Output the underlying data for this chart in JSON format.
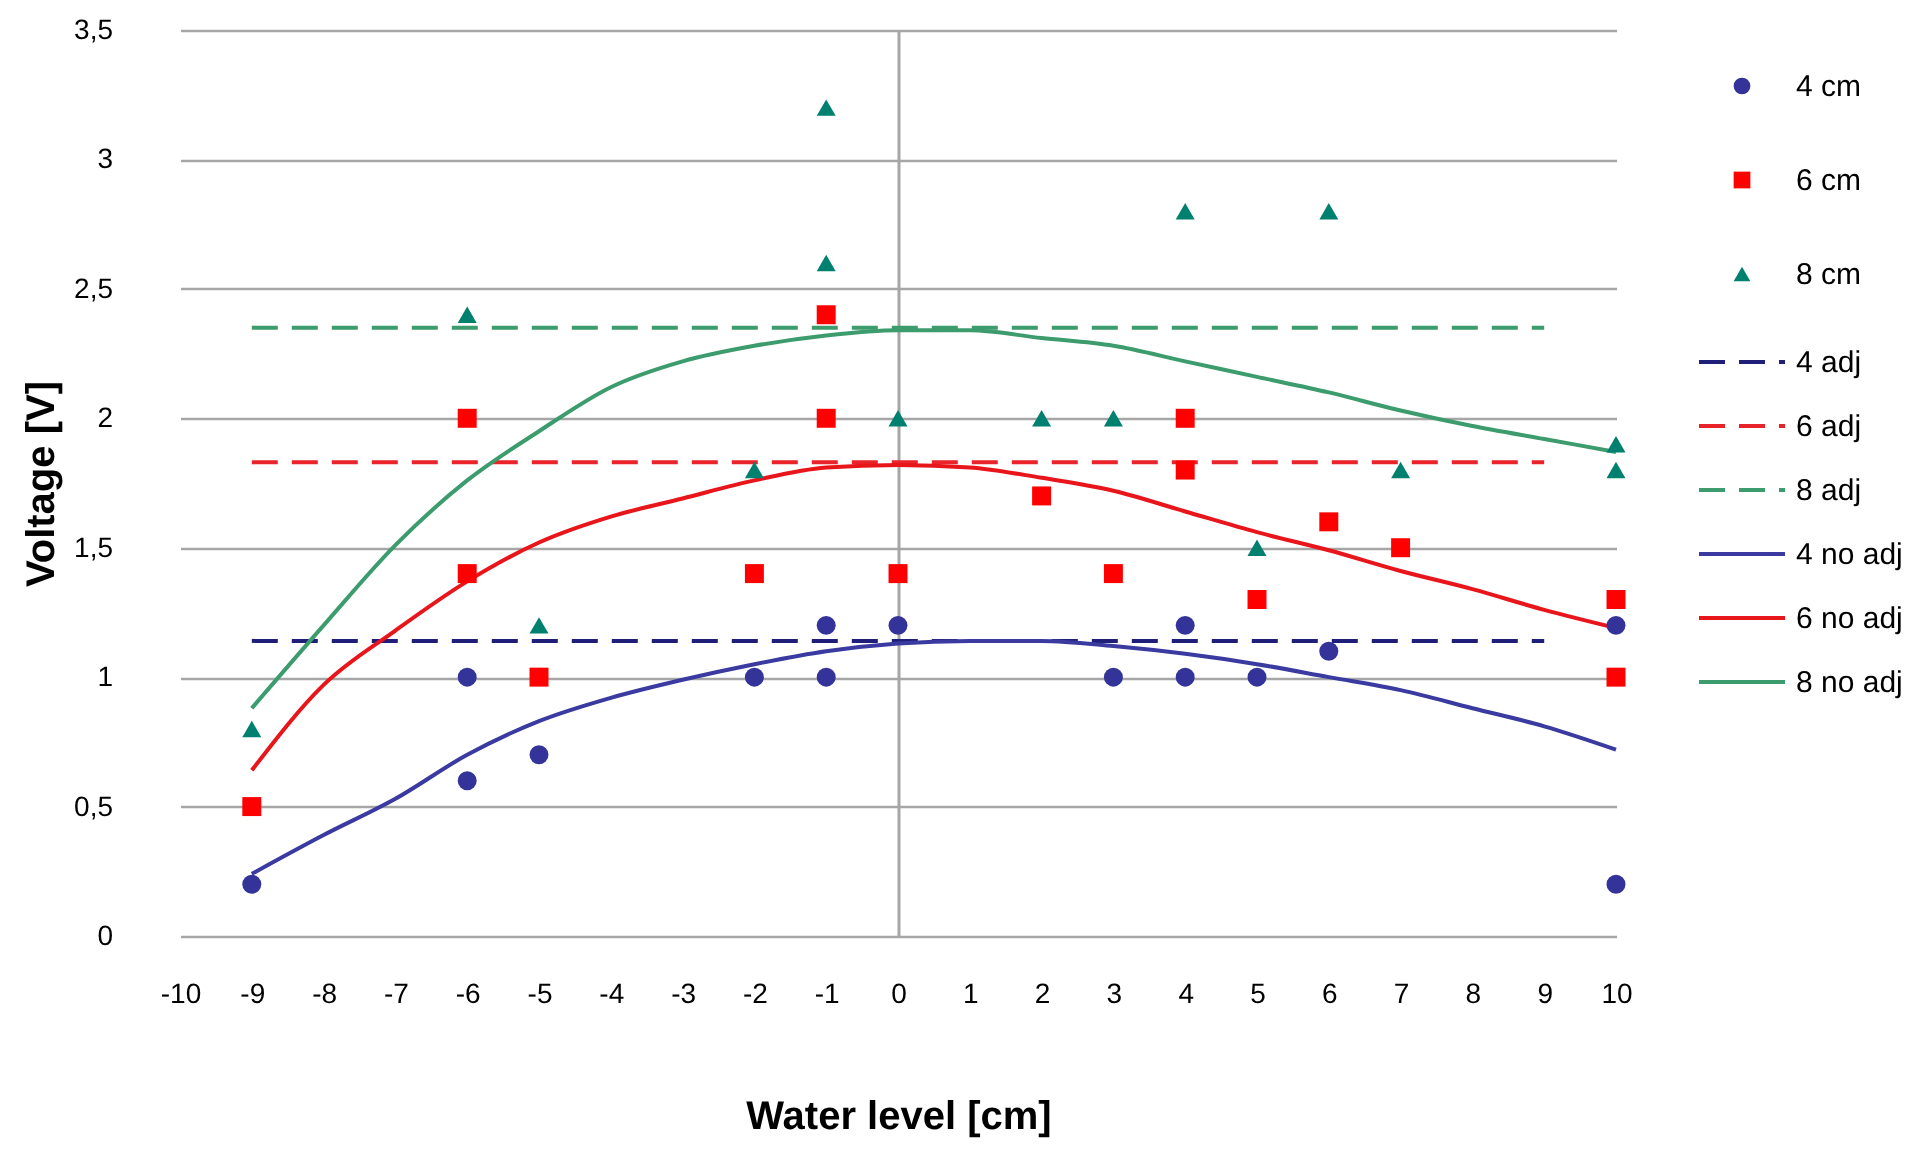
{
  "chart_data": {
    "type": "scatter",
    "xlabel": "Water level [cm]",
    "ylabel": "Voltage [V]",
    "xlim": [
      -10,
      10
    ],
    "xticks": [
      -10,
      -9,
      -8,
      -7,
      -6,
      -5,
      -4,
      -3,
      -2,
      -1,
      0,
      1,
      2,
      3,
      4,
      5,
      6,
      7,
      8,
      9,
      10
    ],
    "ylim": [
      0,
      3.5
    ],
    "yticks": [
      0,
      {
        "value": 0.5,
        "label": "0,5"
      },
      1,
      {
        "value": 1.5,
        "label": "1,5"
      },
      2,
      {
        "value": 2.5,
        "label": "2,5"
      },
      3,
      {
        "value": 3.5,
        "label": "3,5"
      }
    ],
    "grid": "y",
    "legend": "right",
    "series": [
      {
        "name": "4 cm",
        "color": "#333399",
        "marker": "circle",
        "x": [
          -9,
          -6,
          -6,
          -5,
          -2,
          -1,
          -1,
          0,
          3,
          4,
          4,
          5,
          6,
          10,
          10
        ],
        "values": [
          0.2,
          1.0,
          0.6,
          0.7,
          1.0,
          1.2,
          1.0,
          1.2,
          1.0,
          1.2,
          1.0,
          1.0,
          1.1,
          1.2,
          0.2
        ]
      },
      {
        "name": "6 cm",
        "color": "#ff0000",
        "marker": "square",
        "x": [
          -9,
          -6,
          -6,
          -5,
          -2,
          -1,
          -1,
          0,
          2,
          3,
          4,
          4,
          5,
          6,
          7,
          10,
          10
        ],
        "values": [
          0.5,
          2.0,
          1.4,
          1.0,
          1.4,
          2.4,
          2.0,
          1.4,
          1.7,
          1.4,
          2.0,
          1.8,
          1.3,
          1.6,
          1.5,
          1.3,
          1.0
        ]
      },
      {
        "name": "8 cm",
        "color": "#00806e",
        "marker": "triangle",
        "x": [
          -9,
          -6,
          -5,
          -2,
          -1,
          -1,
          0,
          2,
          3,
          4,
          5,
          6,
          7,
          10,
          10
        ],
        "values": [
          0.8,
          2.4,
          1.2,
          1.8,
          3.2,
          2.6,
          2.0,
          2.0,
          2.0,
          2.8,
          1.5,
          2.8,
          1.8,
          1.9,
          1.8
        ]
      },
      {
        "name": "4 adj",
        "type": "line",
        "line_style": "dashed",
        "color": "#1f1f7a",
        "x": [
          -9,
          9
        ],
        "values": [
          1.14,
          1.14
        ]
      },
      {
        "name": "6 adj",
        "type": "line",
        "line_style": "dashed",
        "color": "#e8242a",
        "x": [
          -9,
          9
        ],
        "values": [
          1.83,
          1.83
        ]
      },
      {
        "name": "8 adj",
        "type": "line",
        "line_style": "dashed",
        "color": "#3c9c6e",
        "x": [
          -9,
          9
        ],
        "values": [
          2.35,
          2.35
        ]
      },
      {
        "name": "4 no adj",
        "type": "line",
        "line_style": "solid",
        "color": "#3a3aa0",
        "x": [
          -9,
          -8,
          -7,
          -6,
          -5,
          -4,
          -3,
          -2,
          -1,
          0,
          1,
          2,
          3,
          4,
          5,
          6,
          7,
          8,
          9,
          10
        ],
        "values": [
          0.24,
          0.39,
          0.53,
          0.7,
          0.83,
          0.92,
          0.99,
          1.05,
          1.1,
          1.13,
          1.14,
          1.14,
          1.12,
          1.09,
          1.05,
          1.0,
          0.95,
          0.88,
          0.81,
          0.72
        ]
      },
      {
        "name": "6 no adj",
        "type": "line",
        "line_style": "solid",
        "color": "#e8151b",
        "x": [
          -9,
          -8,
          -7,
          -6,
          -5,
          -4,
          -3,
          -2,
          -1,
          0,
          1,
          2,
          3,
          4,
          5,
          6,
          7,
          8,
          9,
          10
        ],
        "values": [
          0.64,
          0.97,
          1.18,
          1.37,
          1.52,
          1.62,
          1.69,
          1.76,
          1.81,
          1.82,
          1.81,
          1.77,
          1.72,
          1.64,
          1.56,
          1.49,
          1.41,
          1.34,
          1.26,
          1.19
        ]
      },
      {
        "name": "8 no adj",
        "type": "line",
        "line_style": "solid",
        "color": "#3c9c6e",
        "x": [
          -9,
          -8,
          -7,
          -6,
          -5,
          -4,
          -3,
          -2,
          -1,
          0,
          1,
          2,
          3,
          4,
          5,
          6,
          7,
          8,
          9,
          10
        ],
        "values": [
          0.88,
          1.2,
          1.51,
          1.76,
          1.95,
          2.12,
          2.22,
          2.28,
          2.32,
          2.34,
          2.34,
          2.31,
          2.28,
          2.22,
          2.16,
          2.1,
          2.03,
          1.97,
          1.92,
          1.87
        ]
      }
    ]
  }
}
